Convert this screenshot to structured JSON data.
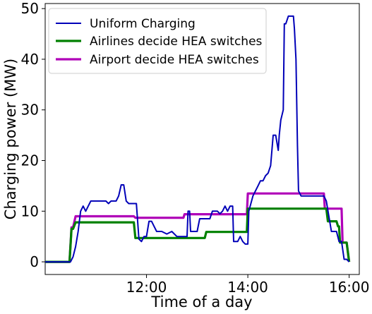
{
  "chart_data": {
    "type": "line",
    "xlabel": "Time of a day",
    "ylabel": "Charging power (MW)",
    "xlim": [
      10.0,
      16.2
    ],
    "ylim": [
      -2.5,
      51
    ],
    "xticks": [
      {
        "value": 12,
        "label": "12:00"
      },
      {
        "value": 14,
        "label": "14:00"
      },
      {
        "value": 16,
        "label": "16:00"
      }
    ],
    "yticks": [
      {
        "value": 0,
        "label": "0"
      },
      {
        "value": 10,
        "label": "10"
      },
      {
        "value": 20,
        "label": "20"
      },
      {
        "value": 30,
        "label": "30"
      },
      {
        "value": 40,
        "label": "40"
      },
      {
        "value": 50,
        "label": "50"
      }
    ],
    "grid": false,
    "legend_position": "top-left",
    "series": [
      {
        "name": "Uniform Charging",
        "color": "#0000b8",
        "points": [
          [
            10.0,
            0
          ],
          [
            10.5,
            0
          ],
          [
            10.55,
            1
          ],
          [
            10.6,
            3
          ],
          [
            10.65,
            6
          ],
          [
            10.7,
            10
          ],
          [
            10.75,
            11
          ],
          [
            10.8,
            10
          ],
          [
            10.85,
            11
          ],
          [
            10.9,
            12
          ],
          [
            11.0,
            12
          ],
          [
            11.2,
            12
          ],
          [
            11.25,
            11.5
          ],
          [
            11.3,
            12
          ],
          [
            11.4,
            12
          ],
          [
            11.45,
            13
          ],
          [
            11.5,
            15.2
          ],
          [
            11.55,
            15.2
          ],
          [
            11.6,
            12
          ],
          [
            11.65,
            11.5
          ],
          [
            11.8,
            11.5
          ],
          [
            11.85,
            4.5
          ],
          [
            11.9,
            4
          ],
          [
            11.95,
            5
          ],
          [
            12.0,
            5
          ],
          [
            12.05,
            8
          ],
          [
            12.1,
            8
          ],
          [
            12.15,
            7
          ],
          [
            12.2,
            6
          ],
          [
            12.3,
            6
          ],
          [
            12.4,
            5.5
          ],
          [
            12.5,
            6
          ],
          [
            12.6,
            5
          ],
          [
            12.8,
            5
          ],
          [
            12.82,
            10
          ],
          [
            12.85,
            10
          ],
          [
            12.87,
            6
          ],
          [
            13.0,
            6
          ],
          [
            13.05,
            8.5
          ],
          [
            13.25,
            8.5
          ],
          [
            13.3,
            10
          ],
          [
            13.4,
            10
          ],
          [
            13.45,
            9.5
          ],
          [
            13.5,
            10
          ],
          [
            13.55,
            11
          ],
          [
            13.6,
            10
          ],
          [
            13.65,
            11
          ],
          [
            13.7,
            11
          ],
          [
            13.72,
            4
          ],
          [
            13.8,
            4
          ],
          [
            13.85,
            5
          ],
          [
            13.9,
            4
          ],
          [
            13.95,
            3.5
          ],
          [
            14.0,
            3.5
          ],
          [
            14.02,
            10
          ],
          [
            14.1,
            13
          ],
          [
            14.2,
            15
          ],
          [
            14.25,
            16
          ],
          [
            14.3,
            16
          ],
          [
            14.35,
            17
          ],
          [
            14.4,
            17.5
          ],
          [
            14.45,
            19
          ],
          [
            14.5,
            25
          ],
          [
            14.55,
            25
          ],
          [
            14.6,
            22
          ],
          [
            14.62,
            25
          ],
          [
            14.65,
            28
          ],
          [
            14.7,
            30
          ],
          [
            14.72,
            47
          ],
          [
            14.75,
            47
          ],
          [
            14.8,
            48.5
          ],
          [
            14.9,
            48.5
          ],
          [
            14.92,
            46
          ],
          [
            14.95,
            40
          ],
          [
            14.98,
            23
          ],
          [
            15.0,
            14
          ],
          [
            15.05,
            13
          ],
          [
            15.15,
            13
          ],
          [
            15.2,
            13
          ],
          [
            15.4,
            13
          ],
          [
            15.5,
            13
          ],
          [
            15.55,
            12
          ],
          [
            15.6,
            9
          ],
          [
            15.65,
            6
          ],
          [
            15.75,
            6
          ],
          [
            15.8,
            4
          ],
          [
            15.85,
            4
          ],
          [
            15.9,
            0.5
          ],
          [
            15.95,
            0.5
          ],
          [
            16.0,
            0
          ]
        ]
      },
      {
        "name": "Airlines decide HEA switches",
        "color": "#008000",
        "points": [
          [
            10.0,
            0
          ],
          [
            10.48,
            0
          ],
          [
            10.52,
            6.5
          ],
          [
            10.55,
            6.5
          ],
          [
            10.6,
            7.8
          ],
          [
            11.75,
            7.8
          ],
          [
            11.78,
            4.7
          ],
          [
            13.15,
            4.7
          ],
          [
            13.18,
            5.9
          ],
          [
            13.98,
            5.9
          ],
          [
            14.0,
            10.5
          ],
          [
            15.55,
            10.5
          ],
          [
            15.58,
            8
          ],
          [
            15.75,
            8
          ],
          [
            15.78,
            7
          ],
          [
            15.8,
            7
          ],
          [
            15.82,
            3.8
          ],
          [
            15.95,
            3.8
          ],
          [
            16.0,
            0
          ]
        ]
      },
      {
        "name": "Airport decide HEA switches",
        "color": "#b000b8",
        "points": [
          [
            10.0,
            0
          ],
          [
            10.48,
            0
          ],
          [
            10.52,
            6.8
          ],
          [
            10.55,
            6.8
          ],
          [
            10.6,
            9
          ],
          [
            11.75,
            9
          ],
          [
            11.78,
            8.7
          ],
          [
            12.73,
            8.7
          ],
          [
            12.75,
            9.4
          ],
          [
            13.98,
            9.4
          ],
          [
            14.0,
            13.5
          ],
          [
            15.5,
            13.5
          ],
          [
            15.52,
            10.5
          ],
          [
            15.85,
            10.5
          ],
          [
            15.87,
            3.8
          ],
          [
            15.95,
            3.8
          ],
          [
            16.0,
            0
          ]
        ]
      }
    ]
  }
}
